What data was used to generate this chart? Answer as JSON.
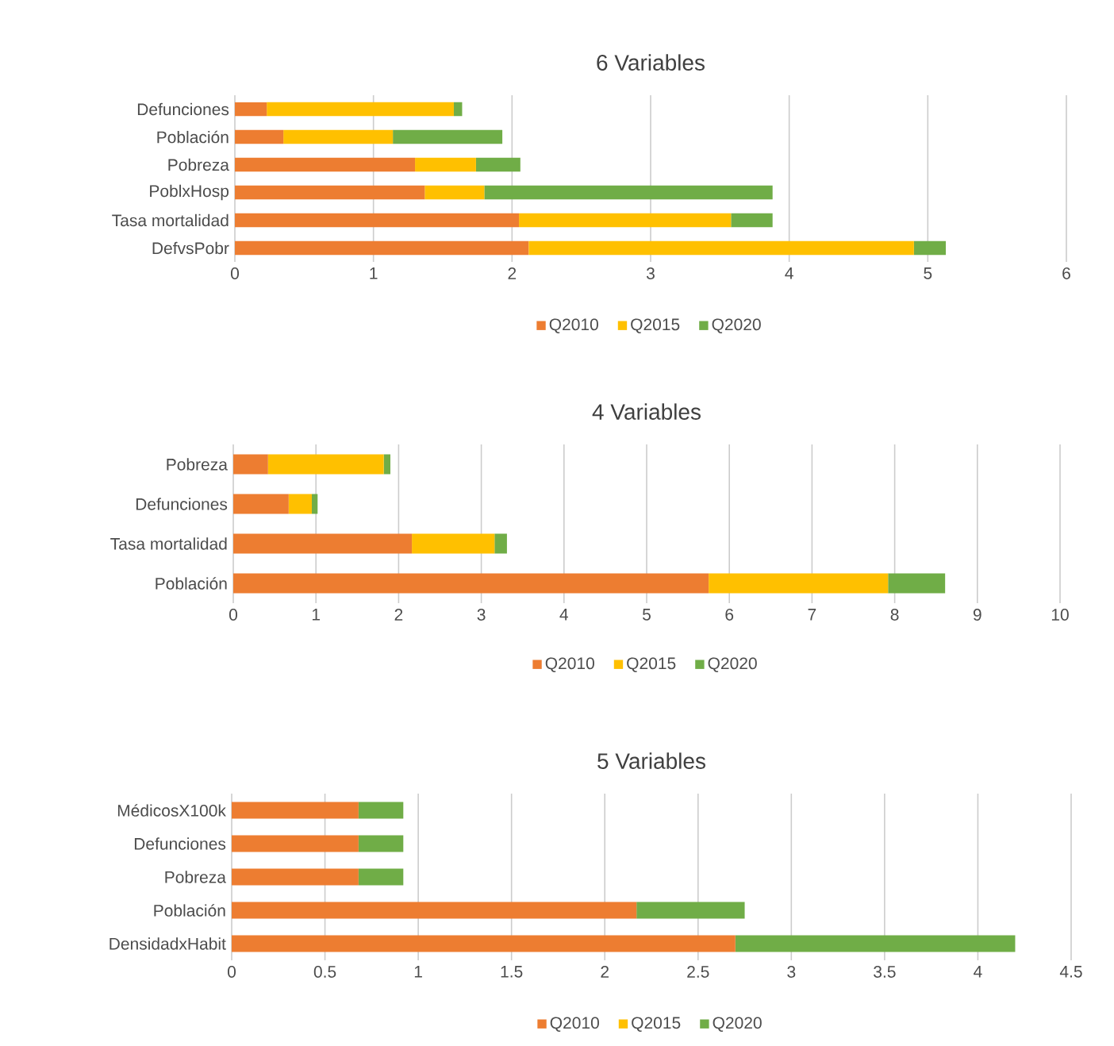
{
  "chart_data": [
    {
      "type": "bar",
      "orientation": "horizontal",
      "stacked": true,
      "title": "6 Variables",
      "categories": [
        "Defunciones",
        "Población",
        "Pobreza",
        "PoblxHosp",
        "Tasa mortalidad",
        "DefvsPobr"
      ],
      "series": [
        {
          "name": "Q2010",
          "color": "#ed7d31",
          "values": [
            0.23,
            0.35,
            1.3,
            1.37,
            2.05,
            2.12
          ]
        },
        {
          "name": "Q2015",
          "color": "#ffc000",
          "values": [
            1.35,
            0.79,
            0.44,
            0.43,
            1.53,
            2.78
          ]
        },
        {
          "name": "Q2020",
          "color": "#70ad47",
          "values": [
            0.06,
            0.79,
            0.32,
            2.08,
            0.3,
            0.23
          ]
        }
      ],
      "xlim": [
        0,
        6
      ],
      "xticks": [
        0,
        1,
        2,
        3,
        4,
        5,
        6
      ],
      "grid": "x",
      "legend": "bottom"
    },
    {
      "type": "bar",
      "orientation": "horizontal",
      "stacked": true,
      "title": "4 Variables",
      "categories": [
        "Pobreza",
        "Defunciones",
        "Tasa mortalidad",
        "Población"
      ],
      "series": [
        {
          "name": "Q2010",
          "color": "#ed7d31",
          "values": [
            0.42,
            0.67,
            2.16,
            5.75
          ]
        },
        {
          "name": "Q2015",
          "color": "#ffc000",
          "values": [
            1.4,
            0.28,
            1.0,
            2.17
          ]
        },
        {
          "name": "Q2020",
          "color": "#70ad47",
          "values": [
            0.08,
            0.07,
            0.15,
            0.69
          ]
        }
      ],
      "xlim": [
        0,
        10
      ],
      "xticks": [
        0,
        1,
        2,
        3,
        4,
        5,
        6,
        7,
        8,
        9,
        10
      ],
      "grid": "x",
      "legend": "bottom"
    },
    {
      "type": "bar",
      "orientation": "horizontal",
      "stacked": true,
      "title": "5 Variables",
      "categories": [
        "MédicosX100k",
        "Defunciones",
        "Pobreza",
        "Población",
        "DensidadxHabit"
      ],
      "series": [
        {
          "name": "Q2010",
          "color": "#ed7d31",
          "values": [
            0.68,
            0.68,
            0.68,
            2.17,
            2.7
          ]
        },
        {
          "name": "Q2015",
          "color": "#ffc000",
          "values": [
            0,
            0,
            0,
            0,
            0
          ]
        },
        {
          "name": "Q2020",
          "color": "#70ad47",
          "values": [
            0.24,
            0.24,
            0.24,
            0.58,
            1.5
          ]
        }
      ],
      "xlim": [
        0,
        4.5
      ],
      "xticks": [
        0,
        0.5,
        1,
        1.5,
        2,
        2.5,
        3,
        3.5,
        4,
        4.5
      ],
      "grid": "x",
      "legend": "bottom"
    }
  ]
}
